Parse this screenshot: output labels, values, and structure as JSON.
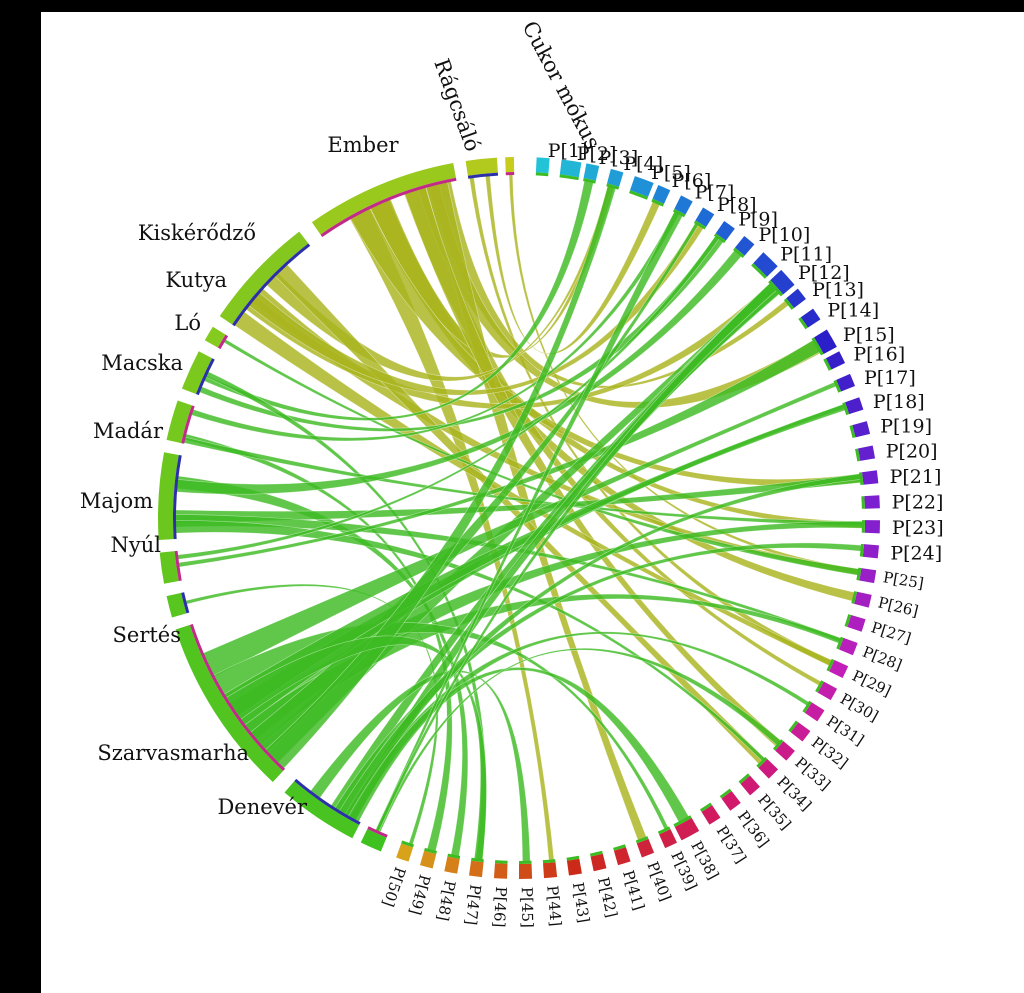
{
  "diagram": {
    "type": "chord",
    "groups": [
      "Cukor mókus",
      "Rágcsáló",
      "Ember",
      "Kiskérődző",
      "Kutya",
      "Ló",
      "Macska",
      "Madár",
      "Majom",
      "Nyúl",
      "Sertés",
      "Szarvasmarha",
      "Denevér"
    ],
    "plasmids": [
      "P[1]",
      "P[2]",
      "P[3]",
      "P[4]",
      "P[5]",
      "P[6]",
      "P[7]",
      "P[8]",
      "P[9]",
      "P[10]",
      "P[11]",
      "P[12]",
      "P[13]",
      "P[14]",
      "P[15]",
      "P[16]",
      "P[17]",
      "P[18]",
      "P[19]",
      "P[20]",
      "P[21]",
      "P[22]",
      "P[23]",
      "P[24]",
      "P[25]",
      "P[26]",
      "P[27]",
      "P[28]",
      "P[29]",
      "P[30]",
      "P[31]",
      "P[32]",
      "P[33]",
      "P[34]",
      "P[35]",
      "P[36]",
      "P[37]",
      "P[38]",
      "P[39]",
      "P[40]",
      "P[41]",
      "P[42]",
      "P[43]",
      "P[44]",
      "P[45]",
      "P[46]",
      "P[47]",
      "P[48]",
      "P[49]",
      "P[50]"
    ],
    "colors": {
      "host_left": "#3fc21f",
      "host_top": "#c8cc1c",
      "ribbon_green": "#3dbb22",
      "ribbon_olive": "#aab51f",
      "plasmid_gradient": [
        "#22c3d6",
        "#1e6bd6",
        "#2a1fc8",
        "#7b1fd0",
        "#c21fb8",
        "#d2186a",
        "#cc2a18",
        "#d8a21a"
      ]
    }
  }
}
